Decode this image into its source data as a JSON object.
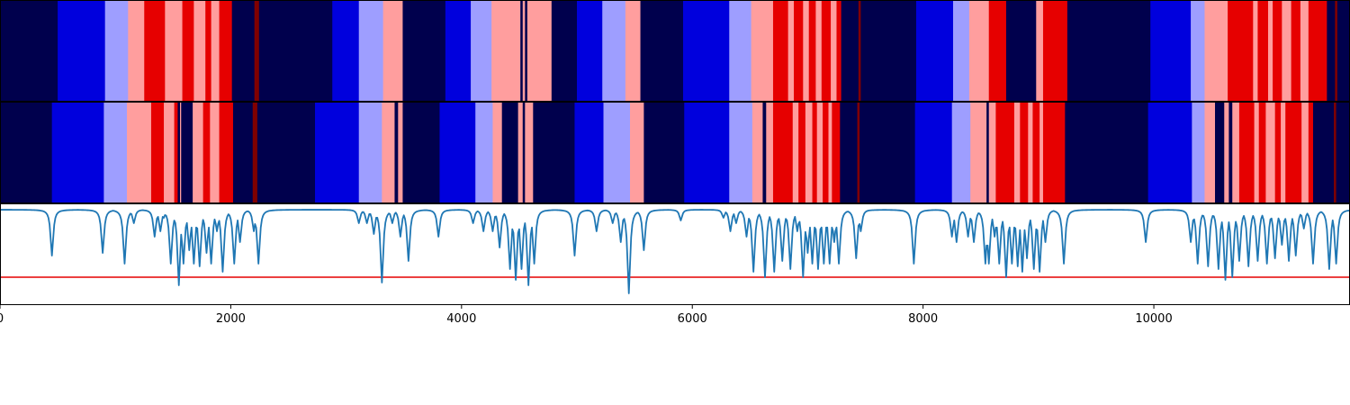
{
  "chart_data": [
    {
      "type": "heatmap",
      "title": "",
      "xlim": [
        0,
        11700
      ],
      "palette": {
        "0": "#00004d",
        "1": "#0000dd",
        "2": "#9e9eff",
        "3": "#ff9e9e",
        "4": "#e60000",
        "5": "#800000"
      },
      "segments": [
        [
          0,
          0
        ],
        [
          500,
          1
        ],
        [
          910,
          2
        ],
        [
          1110,
          3
        ],
        [
          1250,
          4
        ],
        [
          1430,
          3
        ],
        [
          1580,
          4
        ],
        [
          1680,
          3
        ],
        [
          1780,
          4
        ],
        [
          1830,
          3
        ],
        [
          1900,
          4
        ],
        [
          2010,
          0
        ],
        [
          2205,
          5
        ],
        [
          2245,
          0
        ],
        [
          2880,
          1
        ],
        [
          3110,
          2
        ],
        [
          3320,
          3
        ],
        [
          3490,
          0
        ],
        [
          3860,
          1
        ],
        [
          4080,
          2
        ],
        [
          4260,
          3
        ],
        [
          4510,
          0
        ],
        [
          4530,
          3
        ],
        [
          4550,
          0
        ],
        [
          4570,
          3
        ],
        [
          4780,
          0
        ],
        [
          5000,
          1
        ],
        [
          5220,
          2
        ],
        [
          5420,
          3
        ],
        [
          5550,
          0
        ],
        [
          5920,
          1
        ],
        [
          6320,
          2
        ],
        [
          6510,
          3
        ],
        [
          6700,
          4
        ],
        [
          6830,
          3
        ],
        [
          6880,
          4
        ],
        [
          6960,
          3
        ],
        [
          7010,
          4
        ],
        [
          7070,
          3
        ],
        [
          7120,
          4
        ],
        [
          7200,
          3
        ],
        [
          7250,
          4
        ],
        [
          7290,
          0
        ],
        [
          7440,
          5
        ],
        [
          7460,
          0
        ],
        [
          7940,
          1
        ],
        [
          8260,
          2
        ],
        [
          8400,
          3
        ],
        [
          8570,
          4
        ],
        [
          8720,
          0
        ],
        [
          8980,
          3
        ],
        [
          9040,
          4
        ],
        [
          9250,
          0
        ],
        [
          9970,
          1
        ],
        [
          10320,
          2
        ],
        [
          10440,
          3
        ],
        [
          10640,
          4
        ],
        [
          10860,
          3
        ],
        [
          10900,
          4
        ],
        [
          10990,
          3
        ],
        [
          11030,
          4
        ],
        [
          11110,
          3
        ],
        [
          11190,
          4
        ],
        [
          11270,
          3
        ],
        [
          11340,
          4
        ],
        [
          11500,
          0
        ],
        [
          11570,
          5
        ],
        [
          11590,
          0
        ]
      ]
    },
    {
      "type": "heatmap",
      "title": "",
      "xlim": [
        0,
        11700
      ],
      "palette": {
        "0": "#00004d",
        "1": "#0000dd",
        "2": "#9e9eff",
        "3": "#ff9e9e",
        "4": "#e60000",
        "5": "#800000"
      },
      "segments": [
        [
          0,
          0
        ],
        [
          450,
          1
        ],
        [
          900,
          2
        ],
        [
          1100,
          3
        ],
        [
          1310,
          4
        ],
        [
          1420,
          3
        ],
        [
          1510,
          4
        ],
        [
          1540,
          0
        ],
        [
          1560,
          3
        ],
        [
          1570,
          0
        ],
        [
          1670,
          3
        ],
        [
          1760,
          4
        ],
        [
          1820,
          3
        ],
        [
          1900,
          4
        ],
        [
          2020,
          0
        ],
        [
          2190,
          5
        ],
        [
          2230,
          0
        ],
        [
          2730,
          1
        ],
        [
          3110,
          2
        ],
        [
          3310,
          3
        ],
        [
          3420,
          0
        ],
        [
          3450,
          3
        ],
        [
          3490,
          0
        ],
        [
          3810,
          1
        ],
        [
          4120,
          2
        ],
        [
          4270,
          3
        ],
        [
          4350,
          0
        ],
        [
          4490,
          3
        ],
        [
          4530,
          0
        ],
        [
          4550,
          3
        ],
        [
          4620,
          0
        ],
        [
          4980,
          1
        ],
        [
          5230,
          2
        ],
        [
          5460,
          3
        ],
        [
          5580,
          0
        ],
        [
          5930,
          1
        ],
        [
          6320,
          2
        ],
        [
          6520,
          3
        ],
        [
          6610,
          0
        ],
        [
          6640,
          3
        ],
        [
          6700,
          4
        ],
        [
          6870,
          3
        ],
        [
          6920,
          4
        ],
        [
          6980,
          3
        ],
        [
          7040,
          4
        ],
        [
          7080,
          3
        ],
        [
          7130,
          4
        ],
        [
          7180,
          3
        ],
        [
          7210,
          4
        ],
        [
          7280,
          0
        ],
        [
          7430,
          5
        ],
        [
          7450,
          0
        ],
        [
          7930,
          1
        ],
        [
          8250,
          2
        ],
        [
          8410,
          3
        ],
        [
          8550,
          0
        ],
        [
          8570,
          3
        ],
        [
          8630,
          4
        ],
        [
          8790,
          3
        ],
        [
          8840,
          4
        ],
        [
          8910,
          3
        ],
        [
          8950,
          4
        ],
        [
          9010,
          3
        ],
        [
          9040,
          4
        ],
        [
          9230,
          0
        ],
        [
          9950,
          1
        ],
        [
          10330,
          2
        ],
        [
          10440,
          3
        ],
        [
          10530,
          0
        ],
        [
          10610,
          3
        ],
        [
          10650,
          0
        ],
        [
          10680,
          3
        ],
        [
          10740,
          4
        ],
        [
          10870,
          3
        ],
        [
          10910,
          4
        ],
        [
          10970,
          3
        ],
        [
          11050,
          4
        ],
        [
          11100,
          3
        ],
        [
          11140,
          4
        ],
        [
          11280,
          3
        ],
        [
          11340,
          4
        ],
        [
          11380,
          0
        ],
        [
          11560,
          5
        ],
        [
          11580,
          0
        ]
      ]
    },
    {
      "type": "line",
      "title": "",
      "xlabel": "",
      "ylabel": "",
      "xlim": [
        0,
        11700
      ],
      "ylim": [
        -0.35,
        0.02
      ],
      "x_ticks": [
        0,
        2000,
        4000,
        6000,
        8000,
        10000
      ],
      "x_tick_labels": [
        "0",
        "2000",
        "4000",
        "6000",
        "8000",
        "10000"
      ],
      "threshold": -0.25,
      "line_color": "#1f77b4",
      "threshold_color": "#e60000",
      "baseline": 0,
      "dips": [
        [
          450,
          -0.17
        ],
        [
          890,
          -0.16
        ],
        [
          1080,
          -0.2
        ],
        [
          1160,
          -0.05
        ],
        [
          1340,
          -0.1
        ],
        [
          1390,
          -0.08
        ],
        [
          1420,
          -0.03
        ],
        [
          1480,
          -0.2
        ],
        [
          1510,
          -0.04
        ],
        [
          1550,
          -0.28
        ],
        [
          1590,
          -0.2
        ],
        [
          1640,
          -0.15
        ],
        [
          1680,
          -0.2
        ],
        [
          1730,
          -0.21
        ],
        [
          1790,
          -0.16
        ],
        [
          1830,
          -0.2
        ],
        [
          1880,
          -0.08
        ],
        [
          1930,
          -0.23
        ],
        [
          2030,
          -0.2
        ],
        [
          2080,
          -0.12
        ],
        [
          2200,
          -0.08
        ],
        [
          2240,
          -0.2
        ],
        [
          3110,
          -0.05
        ],
        [
          3180,
          -0.05
        ],
        [
          3240,
          -0.09
        ],
        [
          3310,
          -0.27
        ],
        [
          3400,
          -0.05
        ],
        [
          3470,
          -0.1
        ],
        [
          3540,
          -0.19
        ],
        [
          3800,
          -0.1
        ],
        [
          4100,
          -0.05
        ],
        [
          4190,
          -0.08
        ],
        [
          4270,
          -0.08
        ],
        [
          4330,
          -0.14
        ],
        [
          4420,
          -0.22
        ],
        [
          4470,
          -0.26
        ],
        [
          4520,
          -0.22
        ],
        [
          4580,
          -0.28
        ],
        [
          4630,
          -0.2
        ],
        [
          4980,
          -0.17
        ],
        [
          5170,
          -0.08
        ],
        [
          5310,
          -0.05
        ],
        [
          5380,
          -0.12
        ],
        [
          5450,
          -0.31
        ],
        [
          5580,
          -0.15
        ],
        [
          5900,
          -0.04
        ],
        [
          6270,
          -0.03
        ],
        [
          6330,
          -0.08
        ],
        [
          6380,
          -0.05
        ],
        [
          6470,
          -0.1
        ],
        [
          6530,
          -0.23
        ],
        [
          6630,
          -0.25
        ],
        [
          6710,
          -0.23
        ],
        [
          6780,
          -0.19
        ],
        [
          6850,
          -0.22
        ],
        [
          6910,
          -0.08
        ],
        [
          6960,
          -0.25
        ],
        [
          7000,
          -0.16
        ],
        [
          7040,
          -0.2
        ],
        [
          7090,
          -0.22
        ],
        [
          7140,
          -0.2
        ],
        [
          7190,
          -0.2
        ],
        [
          7230,
          -0.12
        ],
        [
          7270,
          -0.2
        ],
        [
          7420,
          -0.18
        ],
        [
          7460,
          -0.08
        ],
        [
          7920,
          -0.2
        ],
        [
          8250,
          -0.1
        ],
        [
          8290,
          -0.12
        ],
        [
          8390,
          -0.1
        ],
        [
          8440,
          -0.12
        ],
        [
          8540,
          -0.2
        ],
        [
          8570,
          -0.2
        ],
        [
          8620,
          -0.1
        ],
        [
          8660,
          -0.2
        ],
        [
          8720,
          -0.25
        ],
        [
          8770,
          -0.2
        ],
        [
          8820,
          -0.21
        ],
        [
          8860,
          -0.23
        ],
        [
          8900,
          -0.18
        ],
        [
          8960,
          -0.22
        ],
        [
          9010,
          -0.23
        ],
        [
          9060,
          -0.12
        ],
        [
          9220,
          -0.2
        ],
        [
          9930,
          -0.12
        ],
        [
          10320,
          -0.12
        ],
        [
          10380,
          -0.2
        ],
        [
          10470,
          -0.21
        ],
        [
          10560,
          -0.22
        ],
        [
          10620,
          -0.26
        ],
        [
          10680,
          -0.25
        ],
        [
          10740,
          -0.19
        ],
        [
          10820,
          -0.21
        ],
        [
          10900,
          -0.19
        ],
        [
          10980,
          -0.2
        ],
        [
          11050,
          -0.18
        ],
        [
          11110,
          -0.13
        ],
        [
          11170,
          -0.19
        ],
        [
          11230,
          -0.17
        ],
        [
          11300,
          -0.07
        ],
        [
          11380,
          -0.2
        ],
        [
          11520,
          -0.22
        ],
        [
          11580,
          -0.2
        ]
      ]
    }
  ]
}
